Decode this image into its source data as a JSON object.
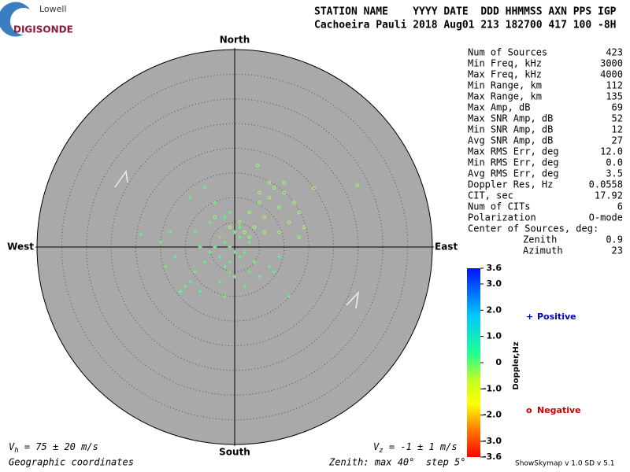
{
  "header": {
    "logo_top": "Lowell",
    "logo_bottom": "DIGISONDE",
    "columns": "STATION NAME    YYYY DATE  DDD HHMMSS AXN PPS IGP",
    "values": "Cachoeira Pauli 2018 Aug01 213 182700 417 100 -8H"
  },
  "stats": {
    "rows": [
      [
        "Num of Sources",
        "423"
      ],
      [
        "Min Freq, kHz",
        "3000"
      ],
      [
        "Max Freq, kHz",
        "4000"
      ],
      [
        "Min Range, km",
        "112"
      ],
      [
        "Max Range, km",
        "135"
      ],
      [
        "Max Amp, dB",
        "69"
      ],
      [
        "Max SNR Amp, dB",
        "52"
      ],
      [
        "Min SNR Amp, dB",
        "12"
      ],
      [
        "Avg SNR Amp, dB",
        "27"
      ],
      [
        "Max RMS Err, deg",
        "12.0"
      ],
      [
        "Min RMS Err, deg",
        "0.0"
      ],
      [
        "Avg RMS Err, deg",
        "3.5"
      ],
      [
        "Doppler Res, Hz",
        "0.0558"
      ],
      [
        "CIT, sec",
        "17.92"
      ],
      [
        "Num of CITs",
        "6"
      ],
      [
        "Polarization",
        "O-mode"
      ]
    ],
    "center_title": "Center of Sources, deg:",
    "center_rows": [
      [
        "Zenith",
        "0.9"
      ],
      [
        "Azimuth",
        "23"
      ]
    ]
  },
  "chart_data": {
    "type": "skymap",
    "directions": {
      "north": "North",
      "south": "South",
      "east": "East",
      "west": "West"
    },
    "zenith_max": 40,
    "ring_step": 5,
    "series": [
      {
        "marker": "+",
        "color": "#5cff7a",
        "x": [
          -1,
          -2,
          0,
          -3,
          1,
          -1,
          -4,
          2,
          -2,
          0,
          -5,
          1,
          -3,
          -6,
          3,
          -1,
          -7,
          0,
          -9,
          -10,
          -8,
          2,
          -2,
          -11,
          -13,
          -19,
          -15,
          -9,
          -6,
          -4,
          -1,
          4,
          5,
          8,
          11,
          9,
          7,
          -14,
          -12,
          -8,
          -5,
          3,
          -3,
          -7,
          1,
          -2
        ],
        "y": [
          0,
          1,
          -1,
          -2,
          2,
          -3,
          0,
          -1,
          -4,
          3,
          -1,
          -2,
          2,
          -3,
          1,
          -5,
          0,
          -6,
          -7,
          -8,
          -5,
          -8,
          -10,
          -9,
          3,
          2.5,
          1,
          10,
          12,
          9,
          7,
          -3,
          -6,
          -5,
          -10,
          -2,
          -4,
          -4,
          -2,
          3,
          5,
          -5,
          -7,
          -9,
          4,
          6
        ]
      },
      {
        "marker": "o",
        "color": "#9cff66",
        "x": [
          1,
          3,
          5,
          7,
          8,
          10,
          12,
          13,
          6,
          4,
          2,
          9,
          11,
          14,
          5,
          7,
          4.6,
          24.8,
          16,
          6,
          3,
          -1,
          -4,
          9,
          13,
          10
        ],
        "y": [
          5,
          7,
          9,
          10,
          12,
          11,
          9,
          7,
          6,
          4,
          3,
          8,
          5,
          4,
          11,
          13,
          16.5,
          12.5,
          12,
          3,
          2,
          4,
          6,
          3,
          2,
          13
        ]
      }
    ]
  },
  "colorbar": {
    "label": "Doppler,Hz",
    "range": [
      -3.6,
      3.6
    ],
    "ticks": [
      3.6,
      {
        "value": 3,
        "label": "3.0"
      },
      {
        "value": 2,
        "label": "2.0"
      },
      {
        "value": 1,
        "label": "1.0"
      },
      0,
      {
        "value": -1,
        "label": "-1.0"
      },
      {
        "value": -2,
        "label": "-2.0"
      },
      {
        "value": -3,
        "label": "-3.0"
      },
      -3.6
    ]
  },
  "legend": {
    "positive_symbol": "+",
    "positive": "Positive",
    "negative_symbol": "o",
    "negative": "Negative"
  },
  "footer": {
    "vh_symbol": "V",
    "vh_sub": "h",
    "vh_text": " = 75 ± 20 m/s",
    "vz_symbol": "V",
    "vz_sub": "z",
    "vz_text": " = -1 ± 1 m/s",
    "coordinates": "Geographic coordinates",
    "zenith": "Zenith: max 40°  step 5°",
    "version": "ShowSkymap v 1.0  SD v 5.1"
  }
}
